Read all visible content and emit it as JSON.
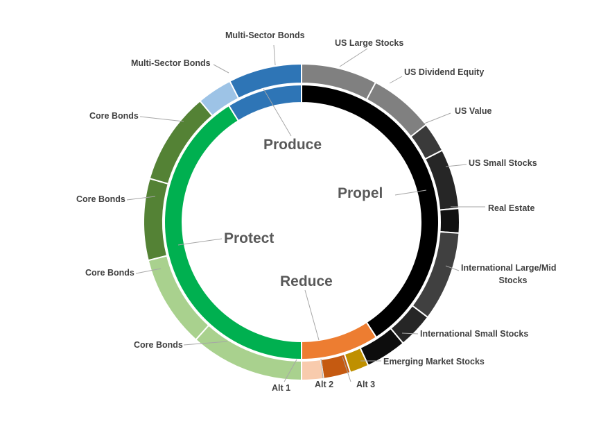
{
  "chart_data": {
    "type": "donut",
    "title": "",
    "inner_ring": [
      {
        "label": "Propel",
        "start_deg": 0,
        "end_deg": 147,
        "color": "#000000"
      },
      {
        "label": "Reduce",
        "start_deg": 147,
        "end_deg": 180,
        "color": "#ED7D31"
      },
      {
        "label": "Protect",
        "start_deg": 180,
        "end_deg": 328,
        "color": "#00B050"
      },
      {
        "label": "Produce",
        "start_deg": 328,
        "end_deg": 360,
        "color": "#2E75B6"
      }
    ],
    "outer_ring": [
      {
        "label": "US Large Stocks",
        "start_deg": 0,
        "end_deg": 28,
        "color": "#808080"
      },
      {
        "label": "US Dividend Equity",
        "start_deg": 28,
        "end_deg": 52,
        "color": "#808080"
      },
      {
        "label": "US Value",
        "start_deg": 52,
        "end_deg": 63,
        "color": "#3A3A3A"
      },
      {
        "label": "US Small Stocks",
        "start_deg": 63,
        "end_deg": 85,
        "color": "#262626"
      },
      {
        "label": "Real Estate",
        "start_deg": 85,
        "end_deg": 94,
        "color": "#111111"
      },
      {
        "label": "International Large/Mid Stocks",
        "start_deg": 94,
        "end_deg": 127,
        "color": "#404040"
      },
      {
        "label": "International Small Stocks",
        "start_deg": 127,
        "end_deg": 140,
        "color": "#262626"
      },
      {
        "label": "Emerging Market Stocks",
        "start_deg": 140,
        "end_deg": 155,
        "color": "#0D0D0D"
      },
      {
        "label": "Alt 3",
        "start_deg": 155,
        "end_deg": 162,
        "color": "#BF9000"
      },
      {
        "label": "Alt 2",
        "start_deg": 162,
        "end_deg": 172,
        "color": "#C55A11"
      },
      {
        "label": "Alt 1",
        "start_deg": 172,
        "end_deg": 180,
        "color": "#F8CBAD"
      },
      {
        "label": "Core Bonds",
        "start_deg": 180,
        "end_deg": 222,
        "color": "#A9D18E"
      },
      {
        "label": "Core Bonds",
        "start_deg": 222,
        "end_deg": 256,
        "color": "#A9D18E"
      },
      {
        "label": "Core Bonds",
        "start_deg": 256,
        "end_deg": 286,
        "color": "#548235"
      },
      {
        "label": "Core Bonds",
        "start_deg": 286,
        "end_deg": 320,
        "color": "#548235"
      },
      {
        "label": "Multi-Sector Bonds",
        "start_deg": 320,
        "end_deg": 333,
        "color": "#9DC3E6"
      },
      {
        "label": "Multi-Sector Bonds",
        "start_deg": 333,
        "end_deg": 360,
        "color": "#2E75B6"
      }
    ]
  }
}
